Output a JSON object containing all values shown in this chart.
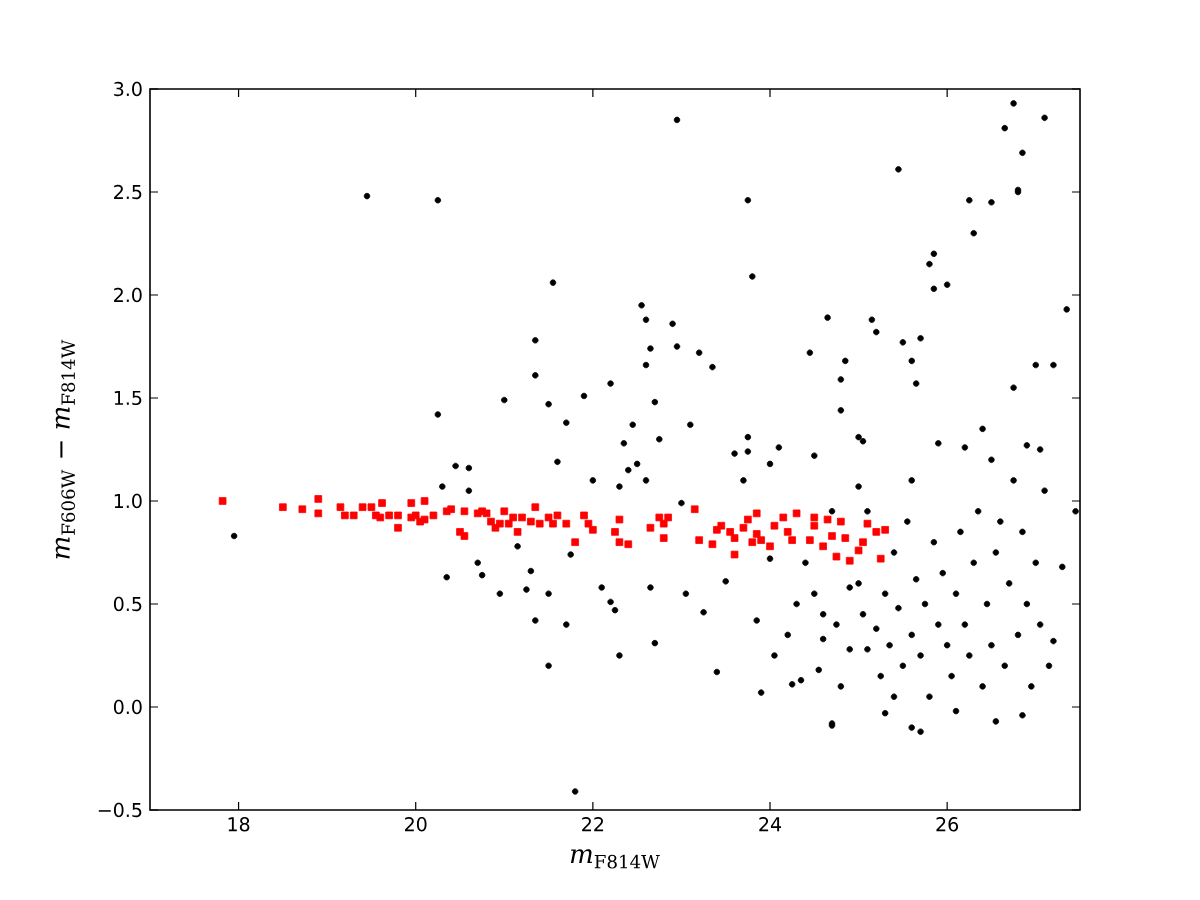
{
  "chart_data": {
    "type": "scatter",
    "xlabel": "*m*$_{F814W}$",
    "ylabel": "*m*$_{F606W}$ − *m*$_{F814W}$",
    "xlim": [
      17,
      27.5
    ],
    "ylim": [
      -0.5,
      3.0
    ],
    "xticks": [
      18,
      20,
      22,
      24,
      26
    ],
    "yticks": [
      {
        "value": -0.5,
        "label": "−0.5"
      },
      {
        "value": 0,
        "label": "0.0"
      },
      {
        "value": 0.5,
        "label": "0.5"
      },
      {
        "value": 1,
        "label": "1.0"
      },
      {
        "value": 1.5,
        "label": "1.5"
      },
      {
        "value": 2,
        "label": "2.0"
      },
      {
        "value": 2.5,
        "label": "2.5"
      },
      {
        "value": 3,
        "label": "3.0"
      }
    ],
    "series": [
      {
        "color": "#000000",
        "marker": "circle",
        "x": [
          17.95,
          19.45,
          20.25,
          20.25,
          20.3,
          20.35,
          20.45,
          20.6,
          20.6,
          20.7,
          20.75,
          20.95,
          21.0,
          21.15,
          21.25,
          21.35,
          21.35,
          21.3,
          21.35,
          21.5,
          21.5,
          21.5,
          21.55,
          21.6,
          21.7,
          21.7,
          21.75,
          21.8,
          21.9,
          22.0,
          22.1,
          22.2,
          22.2,
          22.25,
          22.3,
          22.3,
          22.35,
          22.4,
          22.45,
          22.5,
          22.55,
          22.6,
          22.65,
          22.6,
          22.6,
          22.65,
          22.7,
          22.7,
          22.75,
          22.9,
          22.95,
          22.95,
          23.0,
          23.05,
          23.1,
          23.2,
          23.25,
          23.35,
          23.4,
          23.5,
          23.6,
          23.7,
          23.75,
          23.8,
          23.75,
          23.75,
          23.85,
          23.9,
          24.0,
          24.0,
          24.1,
          24.2,
          24.25,
          24.35,
          24.45,
          24.5,
          24.6,
          24.65,
          24.7,
          24.7,
          24.8,
          24.85,
          24.8,
          24.9,
          25.0,
          25.05,
          25.1,
          25.15,
          25.2,
          25.3,
          25.4,
          25.45,
          25.5,
          25.6,
          25.6,
          25.65,
          25.7,
          25.7,
          25.8,
          25.85,
          25.85,
          25.9,
          26.0,
          26.1,
          26.2,
          26.25,
          26.3,
          26.5,
          26.55,
          26.65,
          26.75,
          26.8,
          26.8,
          26.85,
          26.85,
          27.0,
          27.1,
          27.2,
          27.35,
          27.45,
          27.3,
          27.2,
          24.05,
          24.3,
          24.4,
          24.5,
          24.55,
          24.6,
          24.7,
          24.75,
          24.8,
          24.9,
          25.0,
          25.05,
          25.1,
          25.2,
          25.25,
          25.3,
          25.35,
          25.4,
          25.45,
          25.5,
          25.55,
          25.6,
          25.65,
          25.7,
          25.75,
          25.8,
          25.85,
          25.9,
          25.95,
          26.0,
          26.05,
          26.1,
          26.15,
          26.2,
          26.25,
          26.3,
          26.35,
          26.4,
          26.45,
          26.5,
          26.55,
          26.6,
          26.65,
          26.7,
          26.75,
          26.8,
          26.85,
          26.9,
          26.95,
          27.0,
          27.05,
          27.1,
          27.15,
          25.0,
          25.6,
          26.4,
          26.5,
          26.75,
          26.9,
          27.05
        ],
        "values": [
          0.83,
          2.48,
          2.46,
          1.42,
          1.07,
          0.63,
          1.17,
          1.16,
          1.05,
          0.7,
          0.64,
          0.55,
          1.49,
          0.78,
          0.57,
          1.78,
          1.61,
          0.66,
          0.42,
          1.47,
          0.55,
          0.2,
          2.06,
          1.19,
          1.38,
          0.4,
          0.74,
          -0.41,
          1.51,
          1.1,
          0.58,
          1.57,
          0.51,
          0.47,
          0.25,
          1.07,
          1.28,
          1.15,
          1.37,
          1.18,
          1.95,
          1.88,
          1.74,
          1.1,
          1.66,
          0.58,
          0.31,
          1.48,
          1.3,
          1.86,
          2.85,
          1.75,
          0.99,
          0.55,
          1.37,
          1.72,
          0.46,
          1.65,
          0.17,
          0.61,
          1.23,
          1.1,
          2.46,
          2.09,
          1.31,
          1.24,
          0.42,
          0.07,
          1.18,
          0.72,
          1.26,
          0.35,
          0.11,
          0.13,
          1.72,
          1.22,
          0.33,
          1.89,
          -0.09,
          -0.08,
          1.59,
          1.68,
          1.44,
          0.58,
          1.31,
          1.29,
          0.28,
          1.88,
          1.82,
          -0.03,
          0.05,
          2.61,
          1.77,
          1.68,
          -0.1,
          1.57,
          1.79,
          -0.12,
          2.15,
          2.2,
          2.03,
          1.28,
          2.05,
          -0.02,
          1.26,
          2.46,
          2.3,
          2.45,
          -0.07,
          2.81,
          2.93,
          2.51,
          2.5,
          2.69,
          -0.04,
          1.66,
          2.86,
          1.66,
          1.93,
          0.95,
          0.68,
          0.32,
          0.25,
          0.5,
          0.7,
          0.55,
          0.18,
          0.45,
          0.95,
          0.4,
          0.1,
          0.28,
          0.6,
          0.45,
          0.95,
          0.38,
          0.15,
          0.55,
          0.3,
          0.75,
          0.48,
          0.2,
          0.9,
          0.35,
          0.62,
          0.25,
          0.5,
          0.05,
          0.8,
          0.4,
          0.65,
          0.3,
          0.15,
          0.55,
          0.85,
          0.4,
          0.25,
          0.7,
          0.95,
          0.1,
          0.5,
          0.3,
          0.75,
          0.9,
          0.2,
          0.6,
          1.1,
          0.35,
          0.85,
          0.5,
          0.1,
          0.7,
          0.4,
          1.05,
          0.2,
          1.07,
          1.1,
          1.35,
          1.2,
          1.55,
          1.27,
          1.25
        ]
      },
      {
        "color": "#ff0000",
        "marker": "square",
        "x": [
          17.82,
          18.5,
          18.72,
          18.9,
          18.9,
          19.15,
          19.2,
          19.3,
          19.4,
          19.5,
          19.55,
          19.6,
          19.62,
          19.7,
          19.8,
          19.8,
          19.95,
          19.95,
          20.0,
          20.05,
          20.1,
          20.1,
          20.2,
          20.35,
          20.4,
          20.5,
          20.55,
          20.55,
          20.7,
          20.75,
          20.8,
          20.85,
          20.9,
          20.95,
          21.0,
          21.05,
          21.1,
          21.15,
          21.2,
          21.3,
          21.35,
          21.4,
          21.5,
          21.55,
          21.6,
          21.7,
          21.8,
          21.9,
          21.95,
          22.0,
          22.25,
          22.3,
          22.3,
          22.4,
          22.65,
          22.75,
          22.8,
          22.85,
          22.8,
          23.15,
          23.2,
          23.35,
          23.4,
          23.45,
          23.55,
          23.6,
          23.6,
          23.7,
          23.75,
          23.8,
          23.85,
          23.85,
          23.9,
          24.0,
          24.05,
          24.15,
          24.2,
          24.25,
          24.3,
          24.45,
          24.5,
          24.5,
          24.6,
          24.65,
          24.7,
          24.75,
          24.8,
          24.85,
          24.9,
          25.0,
          25.05,
          25.1,
          25.2,
          25.25,
          25.3
        ],
        "values": [
          1.0,
          0.97,
          0.96,
          1.01,
          0.94,
          0.97,
          0.93,
          0.93,
          0.97,
          0.97,
          0.93,
          0.92,
          0.99,
          0.93,
          0.87,
          0.93,
          0.99,
          0.92,
          0.93,
          0.9,
          1.0,
          0.91,
          0.93,
          0.95,
          0.96,
          0.85,
          0.83,
          0.95,
          0.94,
          0.95,
          0.94,
          0.9,
          0.87,
          0.89,
          0.95,
          0.89,
          0.92,
          0.85,
          0.92,
          0.9,
          0.97,
          0.89,
          0.92,
          0.89,
          0.93,
          0.89,
          0.8,
          0.93,
          0.89,
          0.86,
          0.85,
          0.91,
          0.8,
          0.79,
          0.87,
          0.92,
          0.82,
          0.92,
          0.89,
          0.96,
          0.81,
          0.79,
          0.86,
          0.88,
          0.85,
          0.82,
          0.74,
          0.87,
          0.91,
          0.8,
          0.84,
          0.94,
          0.81,
          0.78,
          0.88,
          0.92,
          0.85,
          0.81,
          0.94,
          0.81,
          0.88,
          0.92,
          0.78,
          0.91,
          0.83,
          0.73,
          0.9,
          0.82,
          0.71,
          0.76,
          0.8,
          0.89,
          0.85,
          0.72,
          0.86
        ]
      }
    ]
  }
}
